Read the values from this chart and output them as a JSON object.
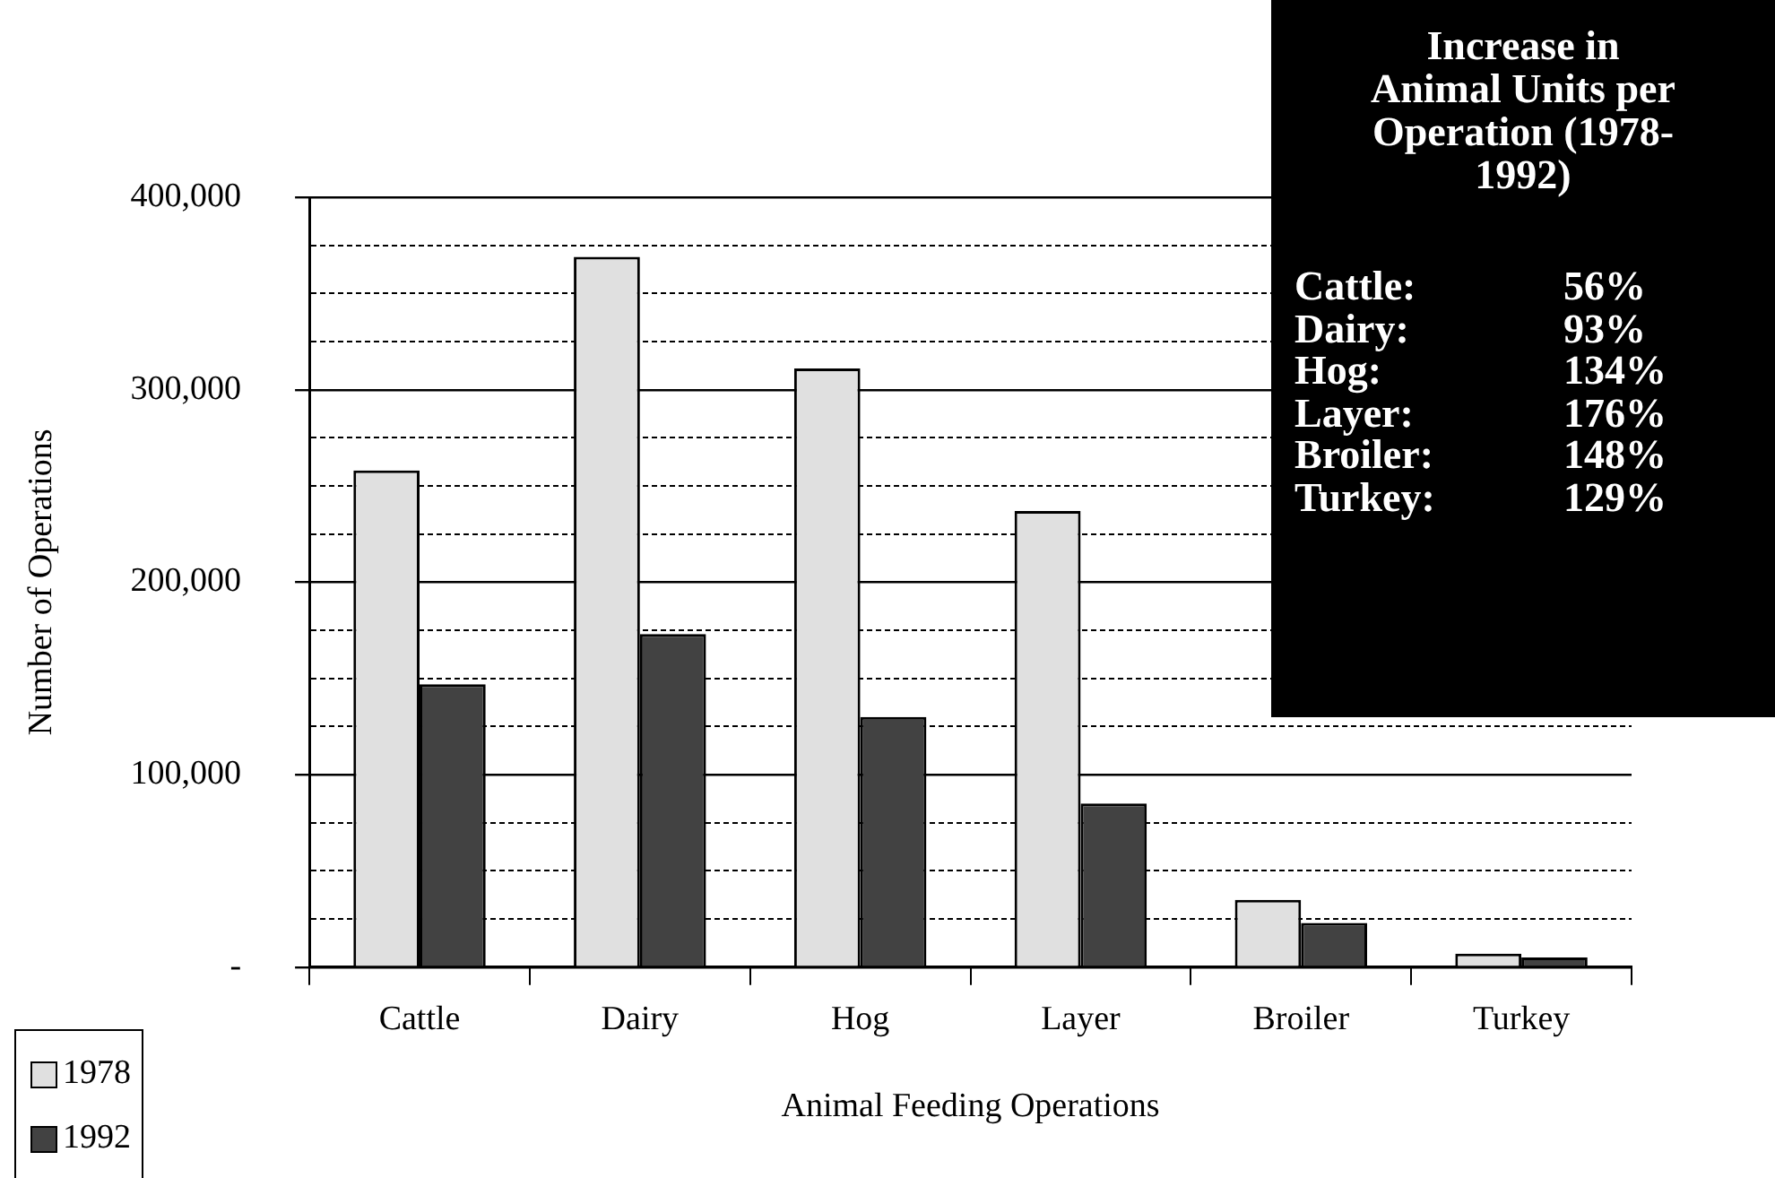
{
  "chart_data": {
    "type": "bar",
    "xlabel": "Animal Feeding Operations",
    "ylabel": "Number of Operations",
    "categories": [
      "Cattle",
      "Dairy",
      "Hog",
      "Layer",
      "Broiler",
      "Turkey"
    ],
    "series": [
      {
        "name": "1978",
        "color": "#e0e0e0",
        "values": [
          258000,
          369000,
          311000,
          237000,
          35000,
          7000
        ]
      },
      {
        "name": "1992",
        "color": "#424242",
        "values": [
          147000,
          173000,
          130000,
          85000,
          23000,
          5000
        ]
      }
    ],
    "ylim": [
      0,
      400000
    ],
    "yticks": [
      {
        "value": 0,
        "label": "-"
      },
      {
        "value": 25000,
        "label": null
      },
      {
        "value": 50000,
        "label": null
      },
      {
        "value": 75000,
        "label": null
      },
      {
        "value": 100000,
        "label": "100,000"
      },
      {
        "value": 125000,
        "label": null
      },
      {
        "value": 150000,
        "label": null
      },
      {
        "value": 175000,
        "label": null
      },
      {
        "value": 200000,
        "label": "200,000"
      },
      {
        "value": 225000,
        "label": null
      },
      {
        "value": 250000,
        "label": null
      },
      {
        "value": 275000,
        "label": null
      },
      {
        "value": 300000,
        "label": "300,000"
      },
      {
        "value": 325000,
        "label": null
      },
      {
        "value": 350000,
        "label": null
      },
      {
        "value": 375000,
        "label": null
      },
      {
        "value": 400000,
        "label": "400,000"
      }
    ],
    "grid": "y",
    "legend": "bottom left",
    "annotations": [
      "Increase in Animal Units per Operation (1978-1992)",
      "Cattle:",
      "56%",
      "Dairy:",
      "93%",
      "Hog:",
      "134%",
      "Layer:",
      "176%",
      "Broiler:",
      "148%",
      "Turkey:",
      "129%"
    ]
  }
}
